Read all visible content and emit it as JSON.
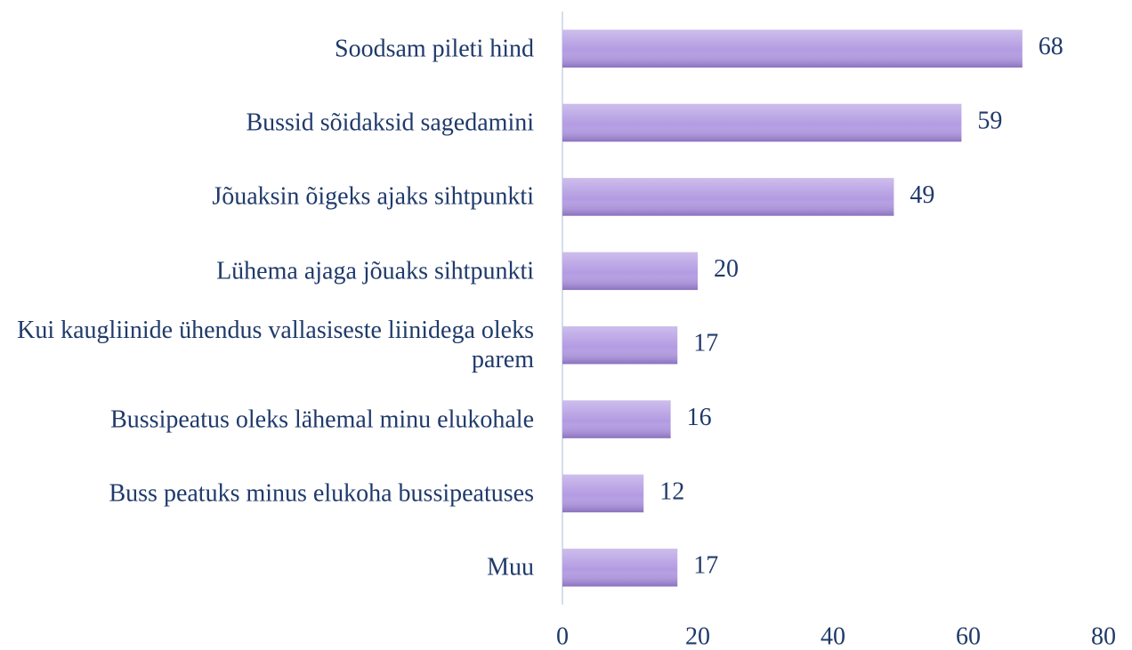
{
  "chart_data": {
    "type": "barh",
    "categories": [
      "Soodsam pileti hind",
      "Bussid sõidaksid sagedamini",
      "Jõuaksin õigeks ajaks sihtpunkti",
      "Lühema ajaga jõuaks sihtpunkti",
      "Kui kaugliinide ühendus vallasiseste liinidega oleks parem",
      "Bussipeatus oleks lähemal minu elukohale",
      "Buss peatuks minus elukoha bussipeatuses",
      "Muu"
    ],
    "values": [
      68,
      59,
      49,
      20,
      17,
      16,
      12,
      17
    ],
    "color": "#b39be2",
    "xlim": [
      0,
      80
    ],
    "xticks": [
      0,
      20,
      40,
      60,
      80
    ],
    "grid": false
  }
}
